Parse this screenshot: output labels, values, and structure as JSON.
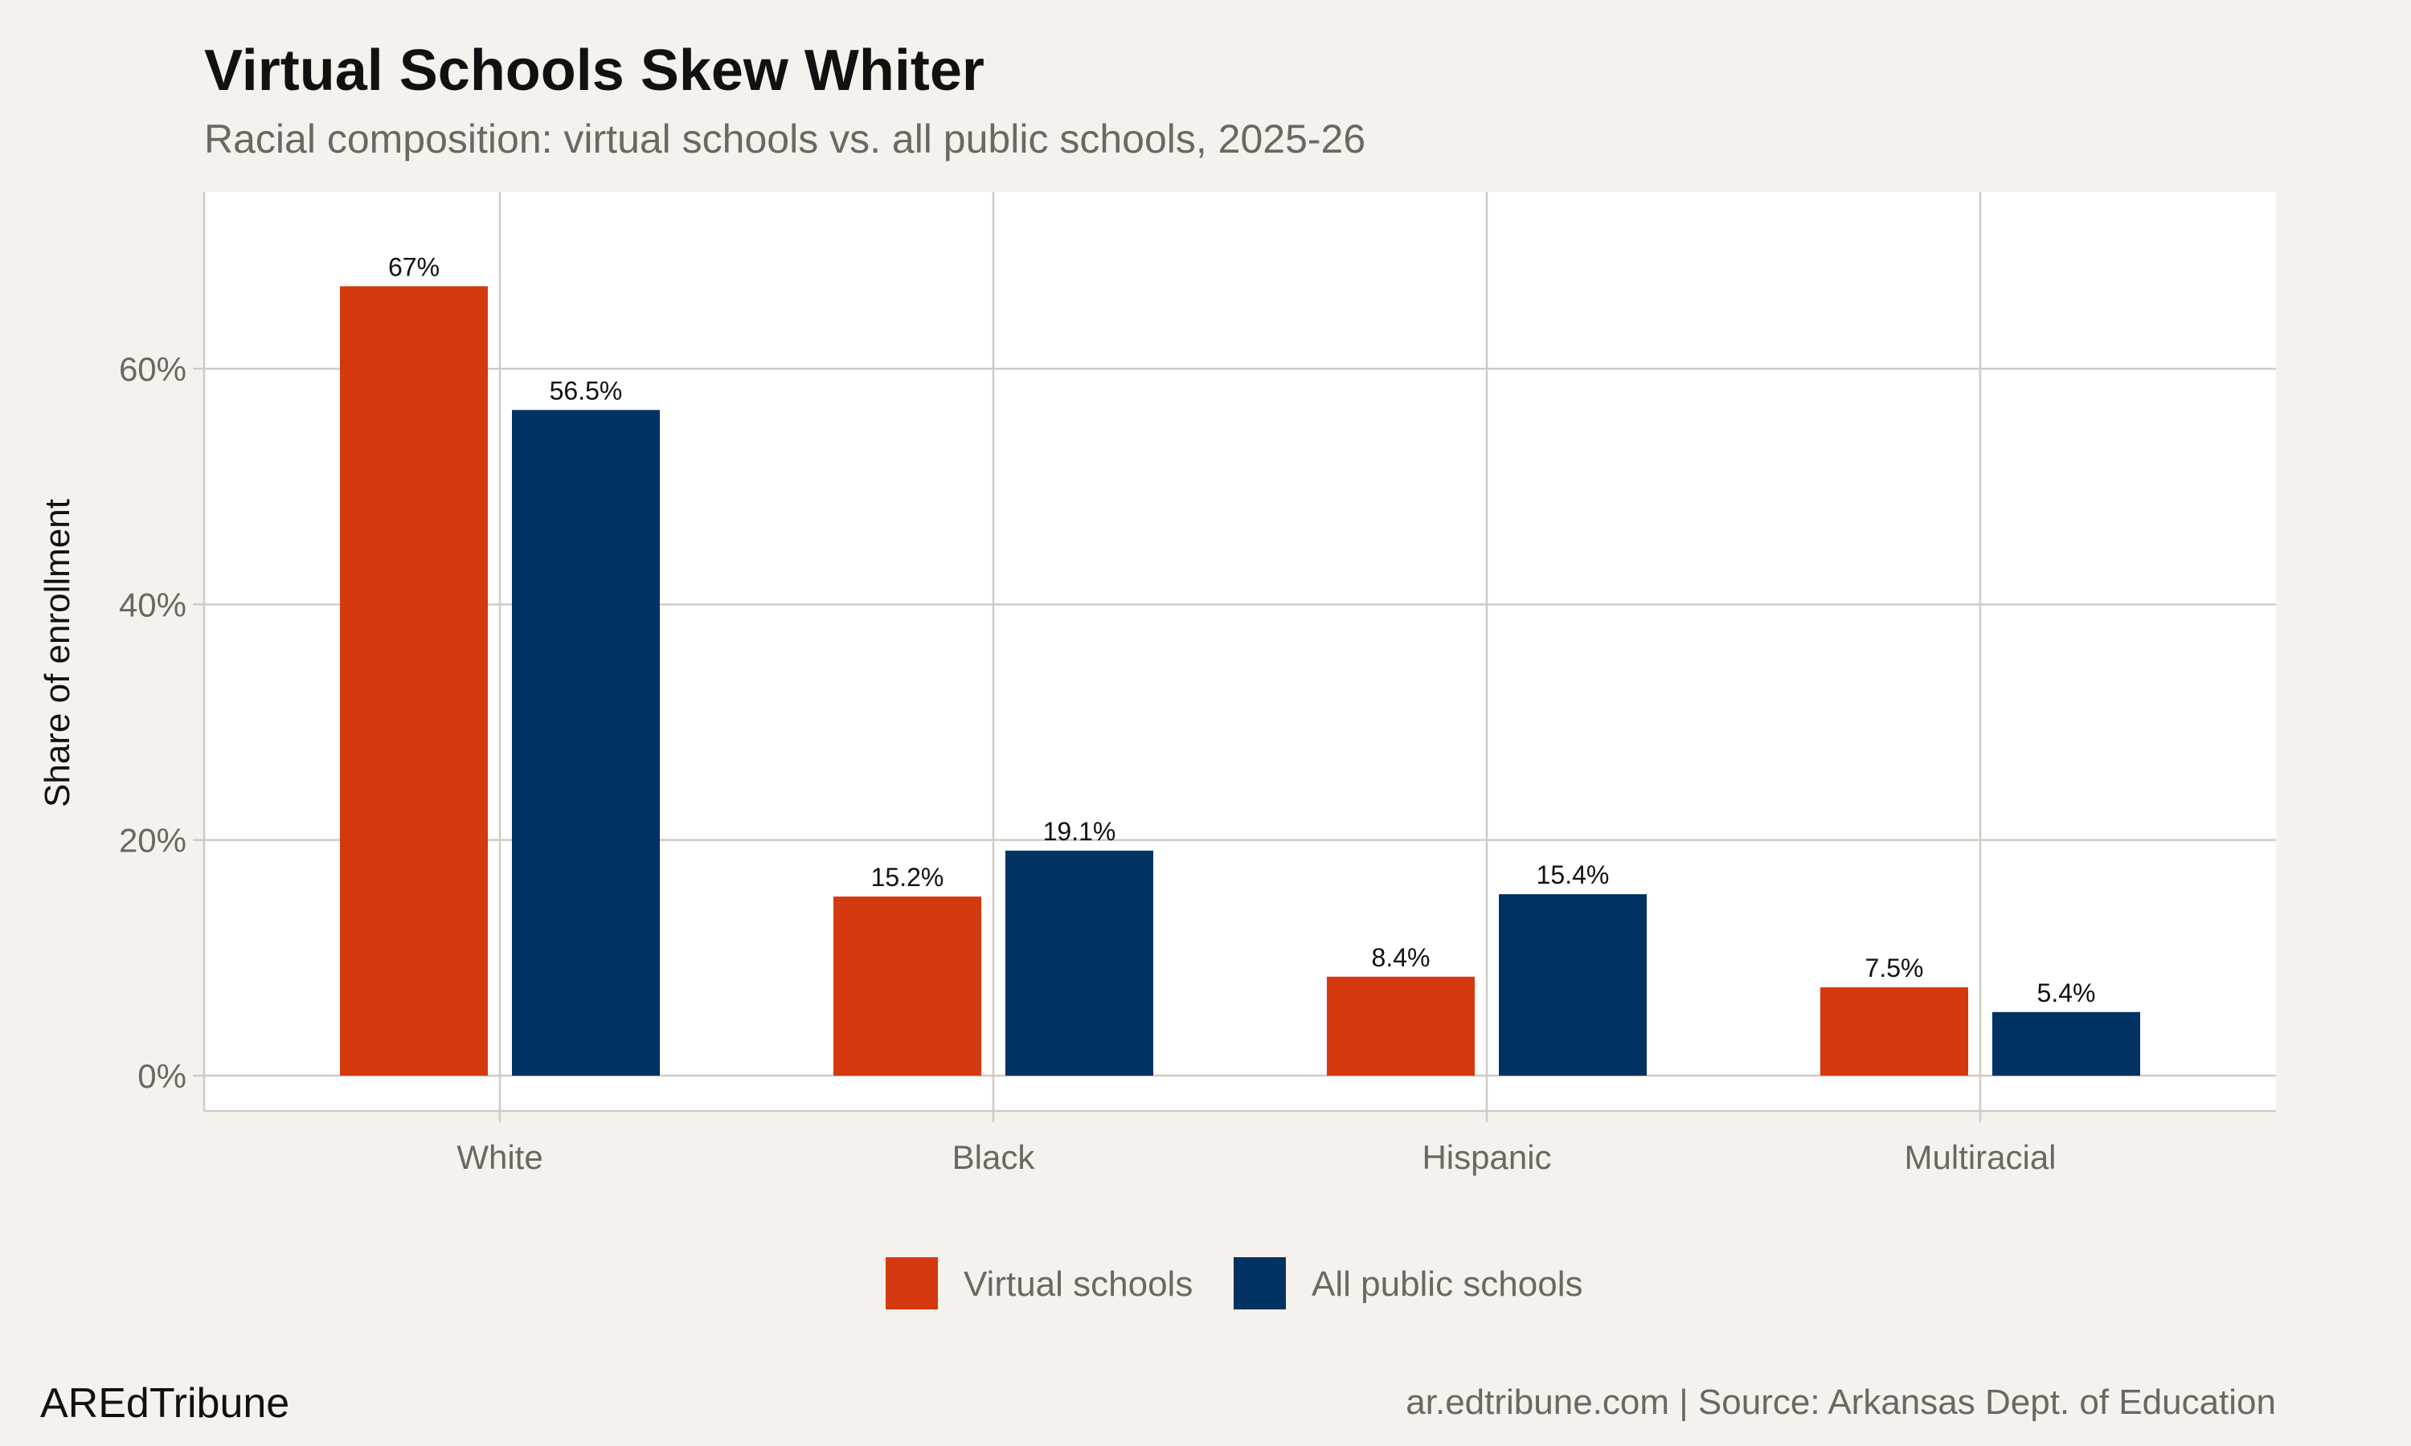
{
  "chart_data": {
    "type": "bar",
    "title": "Virtual Schools Skew Whiter",
    "subtitle": "Racial composition: virtual schools vs. all public schools, 2025-26",
    "xlabel": "",
    "ylabel": "Share of enrollment",
    "categories": [
      "White",
      "Black",
      "Hispanic",
      "Multiracial"
    ],
    "series": [
      {
        "name": "Virtual schools",
        "color": "#d4390f",
        "values": [
          67,
          15.2,
          8.4,
          7.5
        ],
        "labels": [
          "67%",
          "15.2%",
          "8.4%",
          "7.5%"
        ]
      },
      {
        "name": "All public schools",
        "color": "#003263",
        "values": [
          56.5,
          19.1,
          15.4,
          5.4
        ],
        "labels": [
          "56.5%",
          "19.1%",
          "15.4%",
          "5.4%"
        ]
      }
    ],
    "yticks": [
      0,
      20,
      40,
      60
    ],
    "ytick_labels": [
      "0%",
      "20%",
      "40%",
      "60%"
    ],
    "ylim": [
      -3,
      75
    ],
    "grid": true,
    "legend_position": "bottom"
  },
  "footer": {
    "brand": "AREdTribune",
    "source": "ar.edtribune.com | Source: Arkansas Dept. of Education"
  },
  "colors": {
    "background": "#f5f2ed",
    "panel": "#ffffff",
    "grid": "#cfcbc4"
  }
}
